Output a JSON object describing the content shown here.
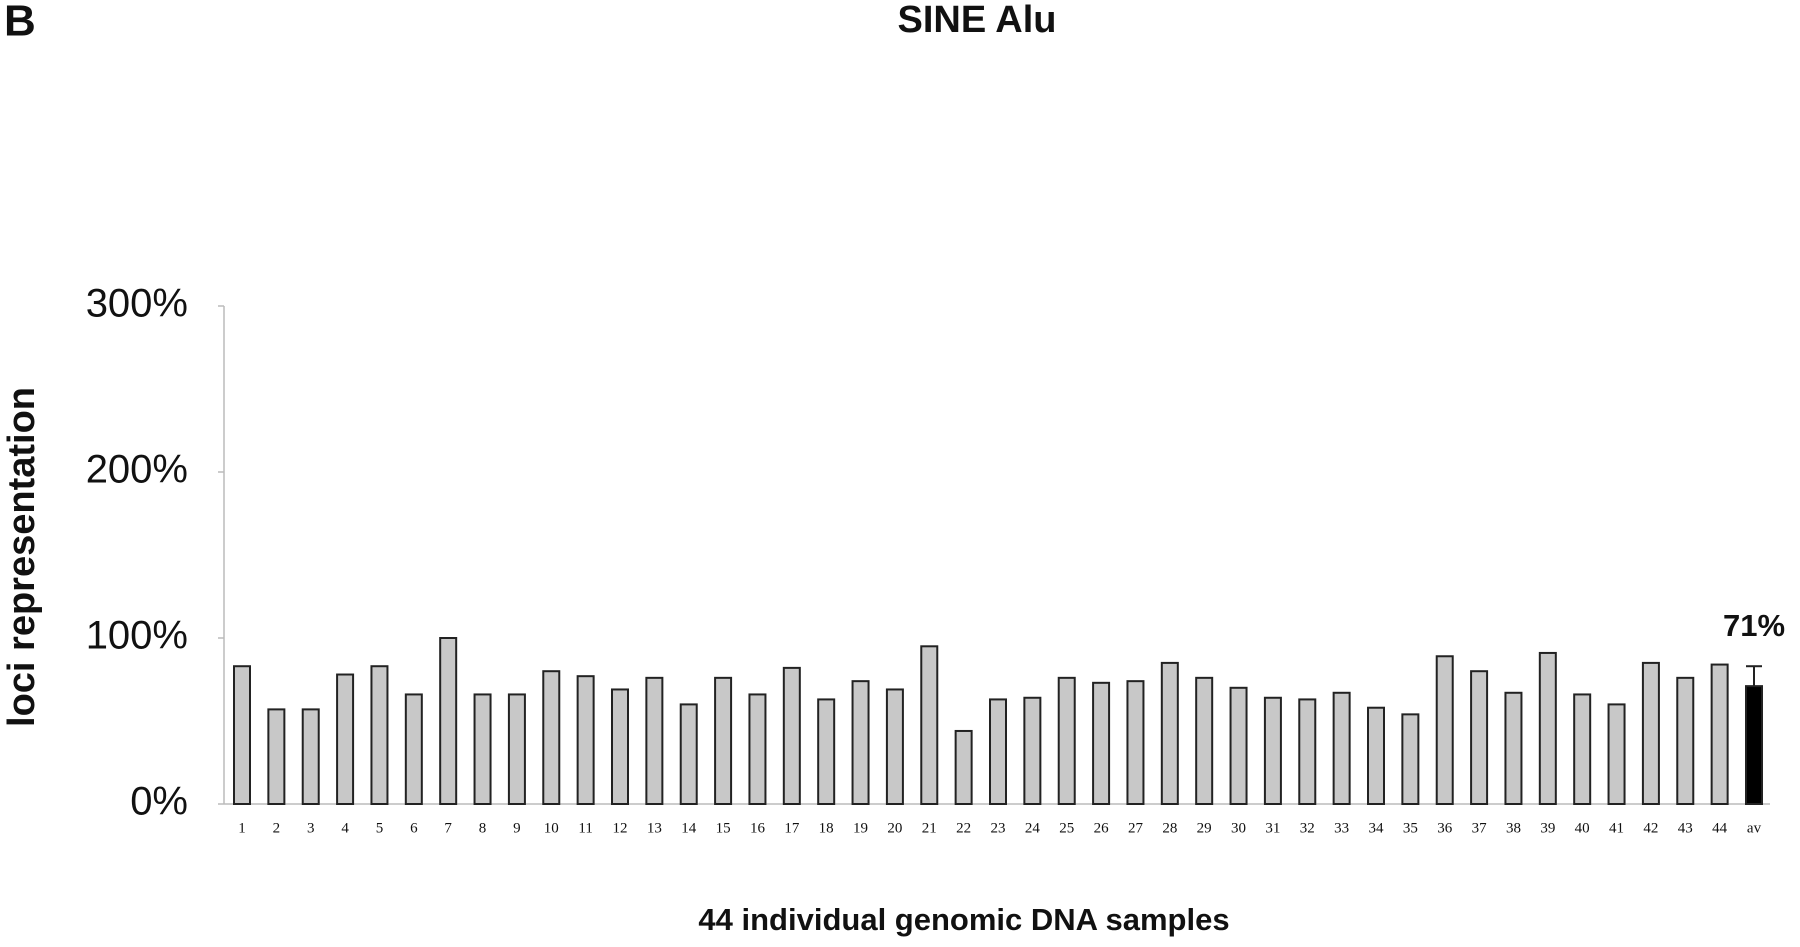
{
  "chart_data": {
    "type": "bar",
    "panel_label": "B",
    "title": "SINE Alu",
    "y_label": "loci representation",
    "x_label": "44 individual genomic DNA samples",
    "categories": [
      "1",
      "2",
      "3",
      "4",
      "5",
      "6",
      "7",
      "8",
      "9",
      "10",
      "11",
      "12",
      "13",
      "14",
      "15",
      "16",
      "17",
      "18",
      "19",
      "20",
      "21",
      "22",
      "23",
      "24",
      "25",
      "26",
      "27",
      "28",
      "29",
      "30",
      "31",
      "32",
      "33",
      "34",
      "35",
      "36",
      "37",
      "38",
      "39",
      "40",
      "41",
      "42",
      "43",
      "44",
      "av"
    ],
    "values": [
      83,
      57,
      57,
      78,
      83,
      66,
      100,
      66,
      66,
      80,
      77,
      69,
      76,
      60,
      76,
      66,
      82,
      63,
      74,
      69,
      95,
      44,
      63,
      64,
      76,
      73,
      74,
      85,
      76,
      70,
      64,
      63,
      67,
      58,
      54,
      89,
      80,
      67,
      91,
      66,
      60,
      85,
      76,
      84,
      71
    ],
    "errors": [
      null,
      null,
      null,
      null,
      null,
      null,
      null,
      null,
      null,
      null,
      null,
      null,
      null,
      null,
      null,
      null,
      null,
      null,
      null,
      null,
      null,
      null,
      null,
      null,
      null,
      null,
      null,
      null,
      null,
      null,
      null,
      null,
      null,
      null,
      null,
      null,
      null,
      null,
      null,
      null,
      null,
      null,
      null,
      null,
      12
    ],
    "value_labels": [
      null,
      null,
      null,
      null,
      null,
      null,
      null,
      null,
      null,
      null,
      null,
      null,
      null,
      null,
      null,
      null,
      null,
      null,
      null,
      null,
      null,
      null,
      null,
      null,
      null,
      null,
      null,
      null,
      null,
      null,
      null,
      null,
      null,
      null,
      null,
      null,
      null,
      null,
      null,
      null,
      null,
      null,
      null,
      null,
      "71%"
    ],
    "colors": [
      "#c8c8c8",
      "#c8c8c8",
      "#c8c8c8",
      "#c8c8c8",
      "#c8c8c8",
      "#c8c8c8",
      "#c8c8c8",
      "#c8c8c8",
      "#c8c8c8",
      "#c8c8c8",
      "#c8c8c8",
      "#c8c8c8",
      "#c8c8c8",
      "#c8c8c8",
      "#c8c8c8",
      "#c8c8c8",
      "#c8c8c8",
      "#c8c8c8",
      "#c8c8c8",
      "#c8c8c8",
      "#c8c8c8",
      "#c8c8c8",
      "#c8c8c8",
      "#c8c8c8",
      "#c8c8c8",
      "#c8c8c8",
      "#c8c8c8",
      "#c8c8c8",
      "#c8c8c8",
      "#c8c8c8",
      "#c8c8c8",
      "#c8c8c8",
      "#c8c8c8",
      "#c8c8c8",
      "#c8c8c8",
      "#c8c8c8",
      "#c8c8c8",
      "#c8c8c8",
      "#c8c8c8",
      "#c8c8c8",
      "#c8c8c8",
      "#c8c8c8",
      "#c8c8c8",
      "#c8c8c8",
      "#000000"
    ],
    "ylim": [
      0,
      300
    ],
    "yticks": [
      {
        "value": 0,
        "label": "0%"
      },
      {
        "value": 100,
        "label": "100%"
      },
      {
        "value": 200,
        "label": "200%"
      },
      {
        "value": 300,
        "label": "300%"
      }
    ],
    "grid": false
  }
}
